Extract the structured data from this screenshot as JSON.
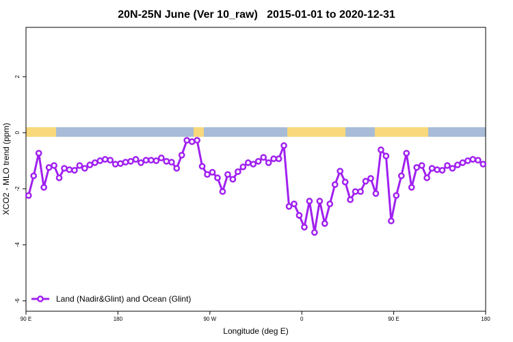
{
  "chart_data": {
    "type": "line",
    "title": "20N-25N June (Ver 10_raw)   2015-01-01 to 2020-12-31",
    "xlabel": "Longitude (deg E)",
    "ylabel": "XCO2 - MLO trend (ppm)",
    "x": [
      92.5,
      97.5,
      102.5,
      107.5,
      112.5,
      117.5,
      122.5,
      127.5,
      132.5,
      137.5,
      142.5,
      147.5,
      152.5,
      157.5,
      162.5,
      167.5,
      172.5,
      177.5,
      182.5,
      187.5,
      192.5,
      197.5,
      202.5,
      207.5,
      212.5,
      217.5,
      222.5,
      227.5,
      232.5,
      237.5,
      242.5,
      247.5,
      252.5,
      257.5,
      262.5,
      267.5,
      272.5,
      277.5,
      282.5,
      287.5,
      292.5,
      297.5,
      302.5,
      307.5,
      312.5,
      317.5,
      322.5,
      327.5,
      332.5,
      337.5,
      342.5,
      347.5,
      352.5,
      357.5,
      362.5,
      367.5,
      372.5,
      377.5,
      382.5,
      387.5,
      392.5,
      397.5,
      402.5,
      407.5,
      412.5,
      417.5,
      422.5,
      427.5,
      432.5,
      437.5,
      442.5,
      447.5,
      452.5,
      457.5,
      462.5,
      467.5,
      472.5,
      477.5,
      482.5,
      487.5,
      492.5,
      497.5,
      502.5,
      507.5,
      512.5,
      517.5,
      522.5,
      527.5,
      532.5,
      537.5
    ],
    "series": [
      {
        "name": "Land (Nadir&Glint) and Ocean (Glint)",
        "color": "#a020f0",
        "values": [
          -2.24,
          -1.54,
          -0.73,
          -1.95,
          -1.24,
          -1.17,
          -1.61,
          -1.27,
          -1.32,
          -1.34,
          -1.17,
          -1.27,
          -1.15,
          -1.07,
          -1.0,
          -0.95,
          -0.98,
          -1.12,
          -1.1,
          -1.05,
          -1.02,
          -0.95,
          -1.07,
          -0.98,
          -0.98,
          -1.0,
          -0.9,
          -1.02,
          -1.05,
          -1.27,
          -0.8,
          -0.27,
          -0.32,
          -0.27,
          -1.2,
          -1.49,
          -1.41,
          -1.61,
          -2.1,
          -1.49,
          -1.66,
          -1.39,
          -1.22,
          -1.07,
          -1.12,
          -1.02,
          -0.88,
          -1.07,
          -0.93,
          -0.93,
          -0.46,
          -2.63,
          -2.54,
          -2.95,
          -3.37,
          -2.44,
          -3.56,
          -2.44,
          -3.24,
          -2.54,
          -1.85,
          -1.37,
          -1.76,
          -2.39,
          -2.1,
          -2.1,
          -1.73,
          -1.63,
          -2.17,
          -0.61,
          -0.83,
          -3.15,
          -2.24,
          -1.54,
          -0.73,
          -1.95,
          -1.24,
          -1.17,
          -1.61,
          -1.27,
          -1.32,
          -1.34,
          -1.17,
          -1.27,
          -1.15,
          -1.07,
          -1.0,
          -0.95,
          -0.98,
          -1.12
        ]
      }
    ],
    "xlim": [
      90,
      540
    ],
    "xticks": [
      {
        "value": 90,
        "label": "90 E"
      },
      180,
      {
        "value": 270,
        "label": "90 W"
      },
      {
        "value": 360,
        "label": "0"
      },
      {
        "value": 450,
        "label": "90 E"
      },
      {
        "value": 540,
        "label": "180"
      }
    ],
    "ylim": [
      -6.37,
      3.76
    ],
    "yticks": [
      -6,
      -4,
      -2,
      0,
      2
    ],
    "legend": "bottom-left"
  }
}
